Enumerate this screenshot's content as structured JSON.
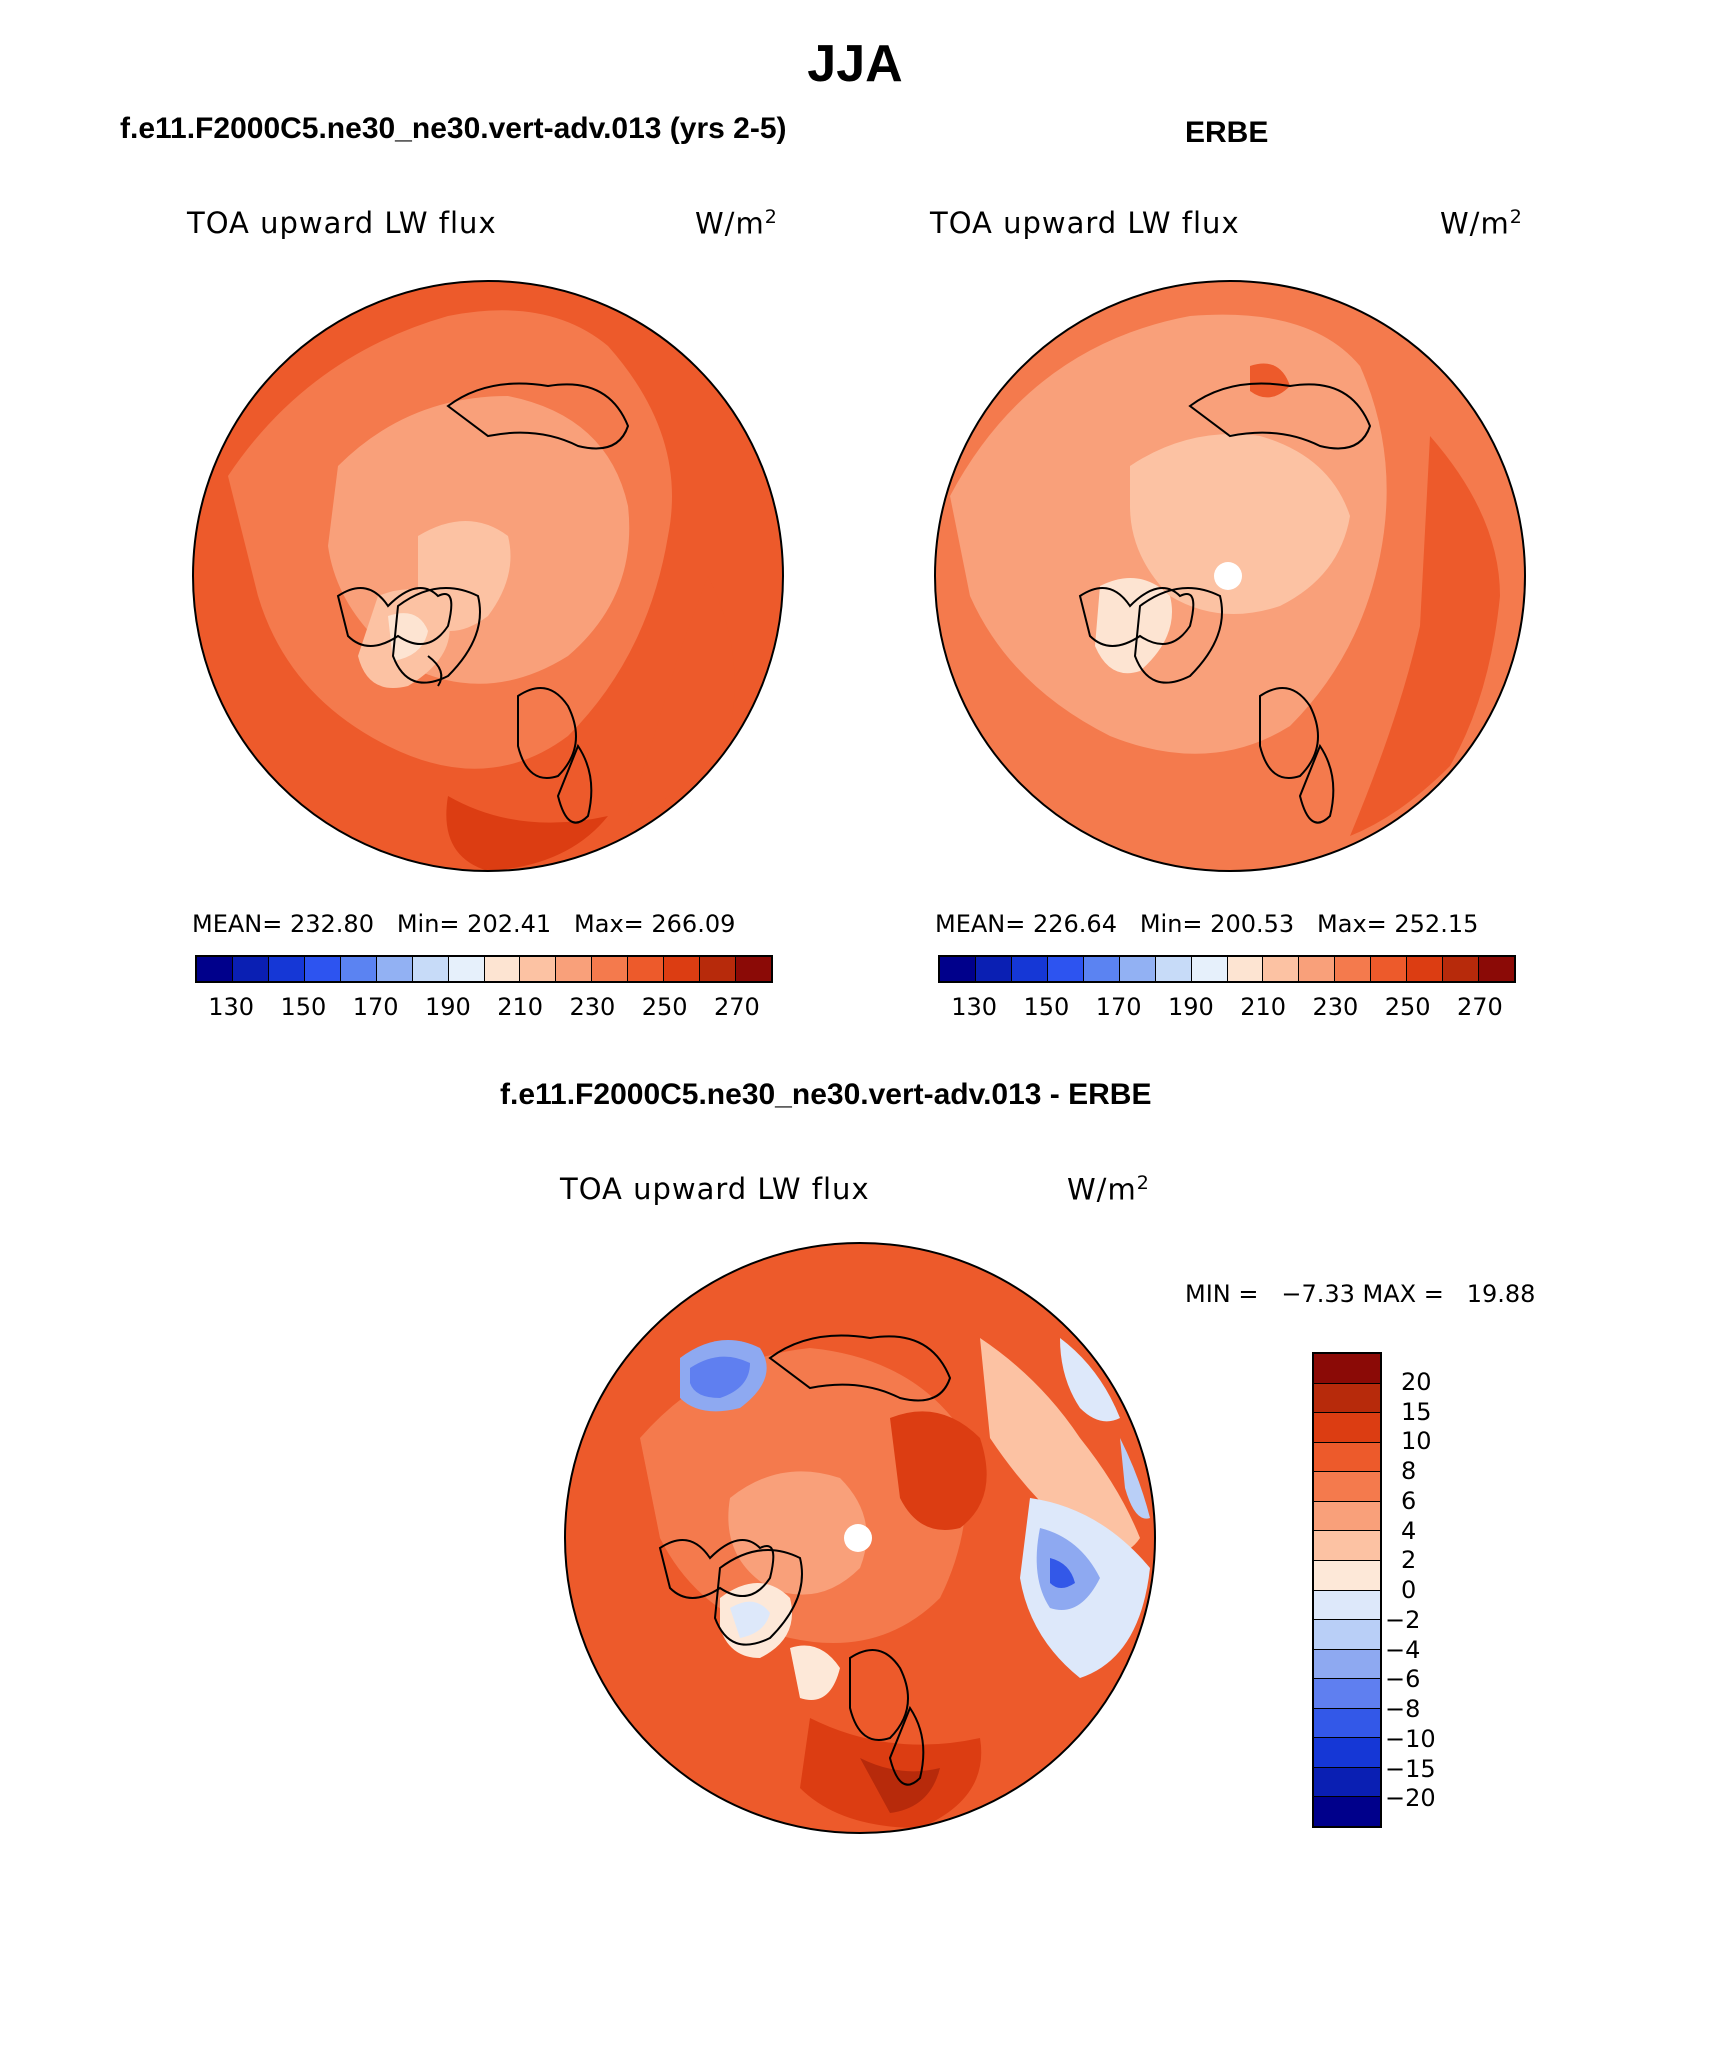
{
  "title": "JJA",
  "panels": [
    {
      "case_title": "f.e11.F2000C5.ne30_ne30.vert-adv.013 (yrs 2-5)",
      "variable": "TOA upward LW flux",
      "units_base": "W/m",
      "units_exp": "2",
      "stats_text": "MEAN= 232.80   Min= 202.41   Max= 266.09",
      "mean": 232.8,
      "min": 202.41,
      "max": 266.09,
      "has_missing_pole": false
    },
    {
      "case_title": "ERBE",
      "variable": "TOA upward LW flux",
      "units_base": "W/m",
      "units_exp": "2",
      "stats_text": "MEAN= 226.64   Min= 200.53   Max= 252.15",
      "mean": 226.64,
      "min": 200.53,
      "max": 252.15,
      "has_missing_pole": true
    }
  ],
  "abs_colorbar": {
    "colors": [
      "#00008b",
      "#0a1fb3",
      "#1537d6",
      "#2d54f0",
      "#5b83f2",
      "#92b1f3",
      "#c7dbf8",
      "#e6f0fb",
      "#fde4d2",
      "#fcc2a3",
      "#f9a07a",
      "#f47a4d",
      "#ed5a2b",
      "#dc3d12",
      "#b72a0b",
      "#8b0a06"
    ],
    "tick_labels": [
      "130",
      "150",
      "170",
      "190",
      "210",
      "230",
      "250",
      "270"
    ]
  },
  "diff_panel": {
    "case_title": "f.e11.F2000C5.ne30_ne30.vert-adv.013 - ERBE",
    "variable": "TOA upward LW flux",
    "units_base": "W/m",
    "units_exp": "2",
    "minmax_text": "MIN =   −7.33 MAX =   19.88",
    "min": -7.33,
    "max": 19.88,
    "has_missing_pole": true
  },
  "diff_colorbar": {
    "colors": [
      "#8b0a06",
      "#b72a0b",
      "#dc3d12",
      "#ed5a2b",
      "#f47a4d",
      "#f9a07a",
      "#fcc2a3",
      "#fde8d8",
      "#dde8fa",
      "#b9cff7",
      "#8ea9f1",
      "#5f7ff0",
      "#3358e8",
      "#1537d6",
      "#0a1fb3",
      "#00008b"
    ],
    "tick_labels": [
      "20",
      "15",
      "10",
      "8",
      "6",
      "4",
      "2",
      "0",
      "−2",
      "−4",
      "−6",
      "−8",
      "−10",
      "−15",
      "−20"
    ]
  }
}
